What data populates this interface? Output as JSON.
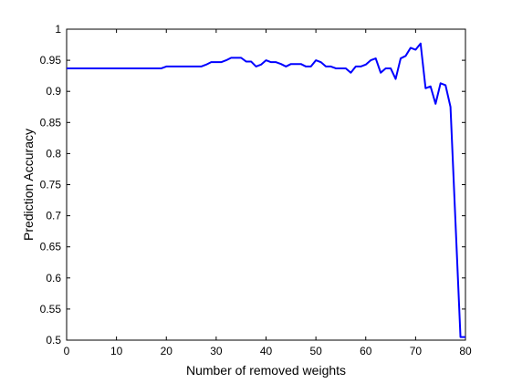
{
  "chart_data": {
    "type": "line",
    "xlabel": "Number of removed weights",
    "ylabel": "Prediction Accuracy",
    "xlim": [
      0,
      80
    ],
    "ylim": [
      0.5,
      1
    ],
    "xticks": [
      0,
      10,
      20,
      30,
      40,
      50,
      60,
      70,
      80
    ],
    "yticks": [
      0.5,
      0.55,
      0.6,
      0.65,
      0.7,
      0.75,
      0.8,
      0.85,
      0.9,
      0.95,
      1
    ],
    "xtick_labels": [
      "0",
      "10",
      "20",
      "30",
      "40",
      "50",
      "60",
      "70",
      "80"
    ],
    "ytick_labels": [
      "0.5",
      "0.55",
      "0.6",
      "0.65",
      "0.7",
      "0.75",
      "0.8",
      "0.85",
      "0.9",
      "0.95",
      "1"
    ],
    "grid": false,
    "line_color": "#0000ff",
    "series": [
      {
        "x": [
          0,
          1,
          2,
          3,
          4,
          5,
          6,
          7,
          8,
          9,
          10,
          11,
          12,
          13,
          14,
          15,
          16,
          17,
          18,
          19,
          20,
          21,
          22,
          23,
          24,
          25,
          26,
          27,
          28,
          29,
          30,
          31,
          32,
          33,
          34,
          35,
          36,
          37,
          38,
          39,
          40,
          41,
          42,
          43,
          44,
          45,
          46,
          47,
          48,
          49,
          50,
          51,
          52,
          53,
          54,
          55,
          56,
          57,
          58,
          59,
          60,
          61,
          62,
          63,
          64,
          65,
          66,
          67,
          68,
          69,
          70,
          71,
          72,
          73,
          74,
          75,
          76,
          77,
          78,
          79,
          80
        ],
        "y": [
          0.937,
          0.937,
          0.937,
          0.937,
          0.937,
          0.937,
          0.937,
          0.937,
          0.937,
          0.937,
          0.937,
          0.937,
          0.937,
          0.937,
          0.937,
          0.937,
          0.937,
          0.937,
          0.937,
          0.937,
          0.94,
          0.94,
          0.94,
          0.94,
          0.94,
          0.94,
          0.94,
          0.94,
          0.943,
          0.947,
          0.947,
          0.947,
          0.95,
          0.954,
          0.954,
          0.954,
          0.948,
          0.948,
          0.94,
          0.943,
          0.95,
          0.947,
          0.947,
          0.944,
          0.94,
          0.944,
          0.944,
          0.944,
          0.94,
          0.94,
          0.95,
          0.947,
          0.94,
          0.94,
          0.937,
          0.937,
          0.937,
          0.93,
          0.94,
          0.94,
          0.943,
          0.95,
          0.953,
          0.93,
          0.937,
          0.937,
          0.92,
          0.953,
          0.957,
          0.97,
          0.967,
          0.977,
          0.905,
          0.908,
          0.88,
          0.913,
          0.91,
          0.875,
          0.69,
          0.505,
          0.505
        ]
      }
    ]
  }
}
